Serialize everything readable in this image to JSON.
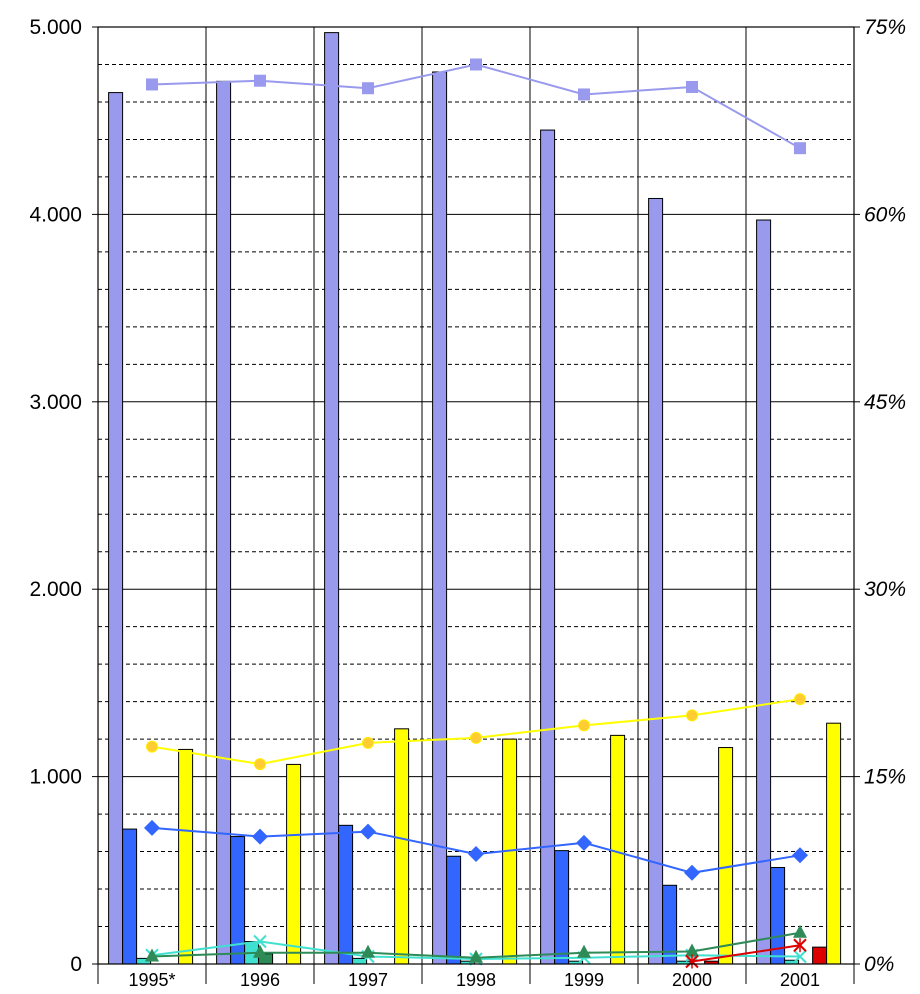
{
  "chart_data": {
    "type": "bar",
    "categories": [
      "1995*",
      "1996",
      "1997",
      "1998",
      "1999",
      "2000",
      "2001"
    ],
    "left_axis": {
      "ylim": [
        0,
        5000
      ],
      "ticks": [
        0,
        1000,
        2000,
        3000,
        4000,
        5000
      ],
      "tick_labels": [
        "0",
        "1.000",
        "2.000",
        "3.000",
        "4.000",
        "5.000"
      ],
      "minor_step": 200
    },
    "right_axis": {
      "ylim": [
        0,
        75
      ],
      "ticks": [
        0,
        15,
        30,
        45,
        60,
        75
      ],
      "tick_labels": [
        "0%",
        "15%",
        "30%",
        "45%",
        "60%",
        "75%"
      ]
    },
    "grid": true,
    "legend": "none",
    "bar_series": [
      {
        "color": "#9999ee",
        "values": [
          4650,
          4710,
          4970,
          4760,
          4450,
          4085,
          3970
        ]
      },
      {
        "color": "#3366ff",
        "values": [
          720,
          680,
          740,
          575,
          605,
          420,
          515
        ]
      },
      {
        "color": "#40e0d0",
        "values": [
          30,
          120,
          30,
          15,
          15,
          15,
          20
        ]
      },
      {
        "color": "#2e8b57",
        "values": [
          0,
          55,
          0,
          0,
          0,
          0,
          0
        ]
      },
      {
        "color": "#dd0000",
        "values": [
          0,
          0,
          0,
          0,
          0,
          15,
          90
        ]
      },
      {
        "color": "#ffff00",
        "values": [
          1145,
          1065,
          1255,
          1200,
          1220,
          1155,
          1285
        ]
      }
    ],
    "line_series": [
      {
        "color": "#9999ee",
        "marker": "square",
        "values": [
          70.4,
          70.7,
          70.1,
          72.0,
          69.6,
          70.2,
          65.3
        ]
      },
      {
        "color": "#ffff00",
        "marker": "circle",
        "values": [
          17.4,
          16.0,
          17.7,
          18.1,
          19.1,
          19.9,
          21.2
        ]
      },
      {
        "color": "#3366ff",
        "marker": "diamond",
        "values": [
          10.9,
          10.2,
          10.6,
          8.8,
          9.7,
          7.3,
          8.7
        ]
      },
      {
        "color": "#40e0d0",
        "marker": "x",
        "values": [
          0.7,
          1.8,
          0.6,
          0.4,
          0.5,
          0.7,
          0.6
        ]
      },
      {
        "color": "#2e8b57",
        "marker": "triangle",
        "values": [
          0.6,
          0.9,
          0.9,
          0.5,
          0.9,
          1.0,
          2.5
        ]
      },
      {
        "color": "#dd0000",
        "marker": "star",
        "values": [
          null,
          null,
          null,
          null,
          null,
          0.2,
          1.5
        ]
      }
    ]
  }
}
